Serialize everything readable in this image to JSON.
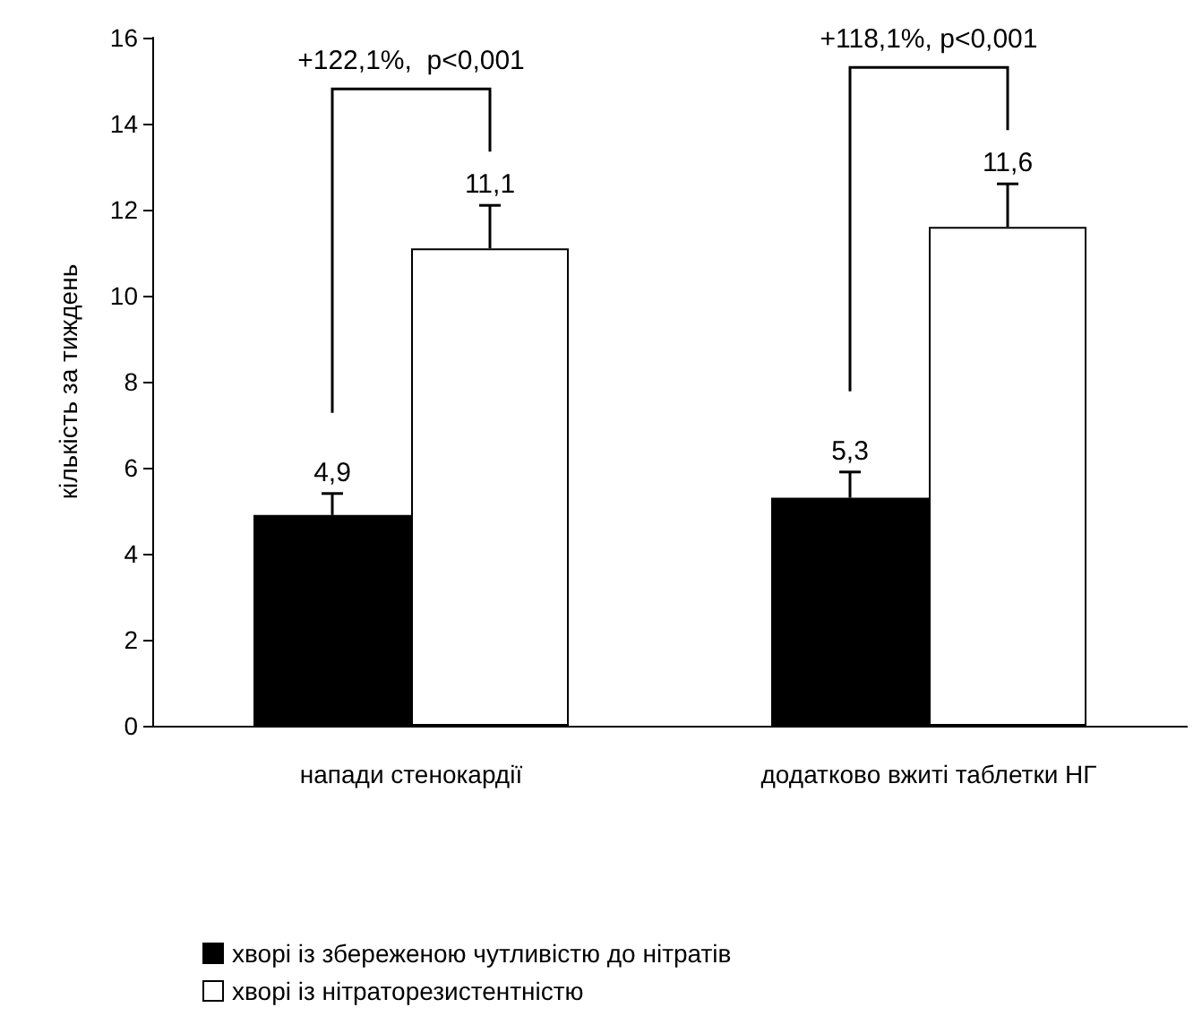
{
  "chart_data": {
    "type": "bar",
    "ylabel": "кількість за тиждень",
    "categories": [
      "напади стенокардії",
      "додатково вжиті таблетки НГ"
    ],
    "series": [
      {
        "name": "хворі із збереженою чутливістю до нітратів",
        "color": "#000000",
        "values": [
          4.9,
          5.3
        ],
        "errors": [
          [
            4.9,
            5.4
          ],
          [
            5.3,
            5.9
          ]
        ],
        "value_labels": [
          "4,9",
          "5,3"
        ]
      },
      {
        "name": "хворі із нітраторезистентністю",
        "color": "#ffffff",
        "values": [
          11.1,
          11.6
        ],
        "errors": [
          [
            11.1,
            12.1
          ],
          [
            11.6,
            12.6
          ]
        ],
        "value_labels": [
          "11,1",
          "11,6"
        ]
      }
    ],
    "annotations": [
      "+122,1%,  p<0,001",
      "+118,1%, p<0,001"
    ],
    "ylim": [
      0,
      16
    ],
    "yticks": [
      0,
      2,
      4,
      6,
      8,
      10,
      12,
      14,
      16
    ],
    "grid": false,
    "legend": "bottom left"
  }
}
